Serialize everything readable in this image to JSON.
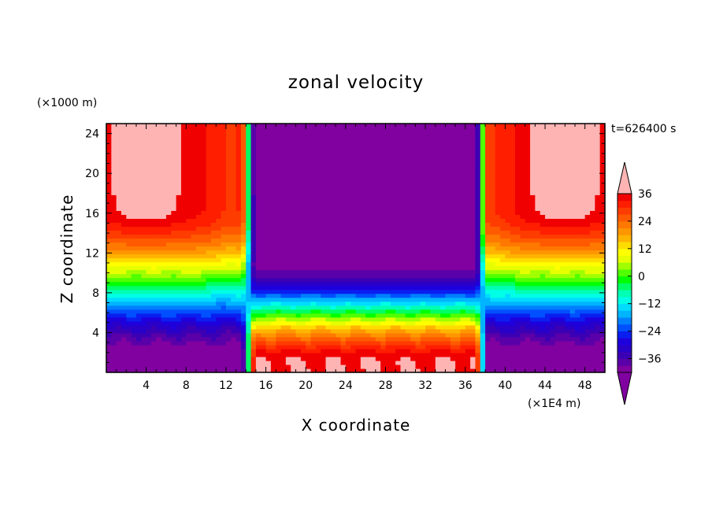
{
  "chart_data": {
    "type": "heatmap",
    "title": "zonal velocity",
    "xlabel": "X coordinate",
    "ylabel": "Z coordinate",
    "x_unit": "(×1E4 m)",
    "y_unit": "(×1000 m)",
    "time_label": "t=626400 s",
    "xlim": [
      0,
      50
    ],
    "ylim": [
      0,
      25
    ],
    "x_ticks": [
      4,
      8,
      12,
      16,
      20,
      24,
      28,
      32,
      36,
      40,
      44,
      48
    ],
    "y_ticks": [
      4,
      8,
      12,
      16,
      20,
      24
    ],
    "colorbar": {
      "levels": [
        -42,
        -39,
        -36,
        -33,
        -30,
        -27,
        -24,
        -21,
        -18,
        -15,
        -12,
        -9,
        -6,
        -3,
        0,
        3,
        6,
        9,
        12,
        15,
        18,
        21,
        24,
        27,
        30,
        33,
        36,
        39
      ],
      "tick_values": [
        36,
        24,
        12,
        0,
        -12,
        -24,
        -36
      ],
      "tick_labels": [
        "36",
        "24",
        "12",
        "0",
        "−12",
        "−24",
        "−36"
      ],
      "colors": [
        "#8000a0",
        "#5a00a8",
        "#3c00b4",
        "#2800c8",
        "#1e00dc",
        "#0a1ef0",
        "#0050ff",
        "#0080ff",
        "#00b4ff",
        "#00dcff",
        "#00ffe6",
        "#00ffb4",
        "#00ff64",
        "#00ff00",
        "#50ff00",
        "#a0ff00",
        "#e6ff00",
        "#ffff00",
        "#ffdc00",
        "#ffb400",
        "#ff9600",
        "#ff7800",
        "#ff5a00",
        "#ff3c00",
        "#ff1e00",
        "#f00000",
        "#ffb4b4"
      ],
      "over_color": "#ffb4b4",
      "under_color": "#8000a0"
    }
  }
}
